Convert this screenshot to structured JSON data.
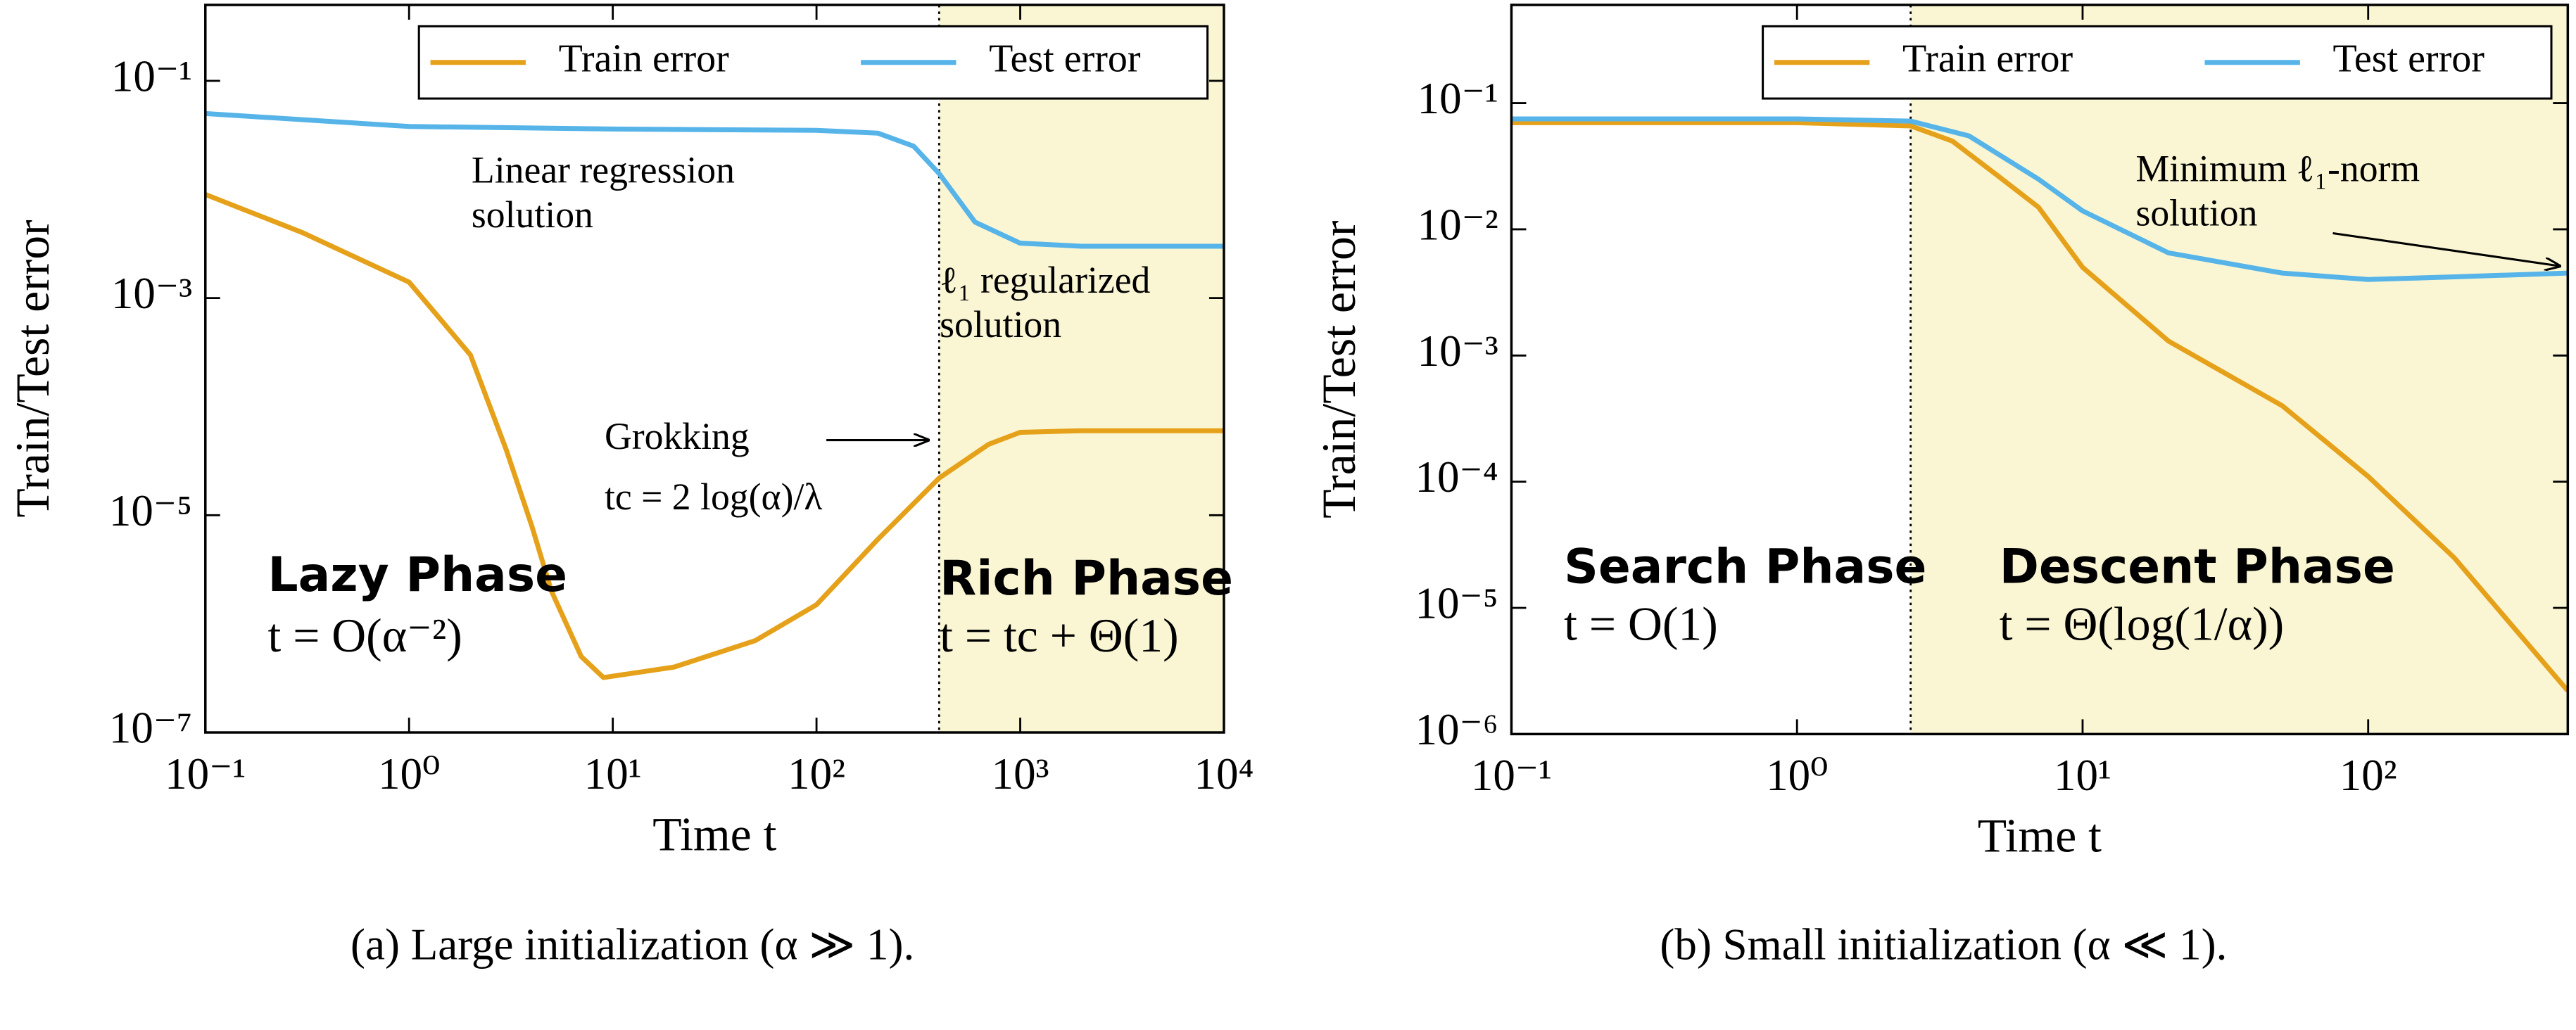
{
  "chart_data": [
    {
      "type": "line",
      "caption": "(a) Large initialization (α ≫ 1).",
      "xlabel": "Time t",
      "ylabel": "Train/Test error",
      "xlog": true,
      "ylog": true,
      "xlim": [
        0.1,
        10000
      ],
      "ylim": [
        1e-07,
        0.5
      ],
      "xticks": [
        {
          "value": 0.1,
          "label": "10⁻¹"
        },
        {
          "value": 1,
          "label": "10⁰"
        },
        {
          "value": 10,
          "label": "10¹"
        },
        {
          "value": 100,
          "label": "10²"
        },
        {
          "value": 1000,
          "label": "10³"
        },
        {
          "value": 10000,
          "label": "10⁴"
        }
      ],
      "yticks": [
        {
          "value": 1e-07,
          "label": "10⁻⁷"
        },
        {
          "value": 1e-05,
          "label": "10⁻⁵"
        },
        {
          "value": 0.001,
          "label": "10⁻³"
        },
        {
          "value": 0.1,
          "label": "10⁻¹"
        }
      ],
      "legend": "upper right",
      "phase_boundary": {
        "x": 400,
        "shade_color": "#faf6d4"
      },
      "series": [
        {
          "name": "Train error",
          "color": "#e6a11a",
          "x": [
            0.1,
            0.3,
            1,
            2,
            3,
            4,
            5,
            7,
            9,
            20,
            50,
            100,
            200,
            400,
            700,
            1000,
            2000,
            10000
          ],
          "values": [
            0.009,
            0.004,
            0.0014,
            0.0003,
            4e-05,
            8e-06,
            2e-06,
            5e-07,
            3.2e-07,
            4e-07,
            7e-07,
            1.5e-06,
            6e-06,
            2.2e-05,
            4.5e-05,
            5.8e-05,
            6e-05,
            6e-05
          ]
        },
        {
          "name": "Test error",
          "color": "#56b4e9",
          "x": [
            0.1,
            1,
            10,
            100,
            200,
            300,
            400,
            600,
            1000,
            2000,
            10000
          ],
          "values": [
            0.05,
            0.038,
            0.036,
            0.035,
            0.033,
            0.025,
            0.014,
            0.005,
            0.0032,
            0.003,
            0.003
          ]
        }
      ],
      "annotations": [
        "Linear regression",
        "solution",
        "ℓ₁ regularized",
        "solution",
        "Grokking",
        "tc = 2 log(α)/λ",
        "Lazy Phase",
        "t = O(α⁻²)",
        "Rich Phase",
        "t = tc + Θ(1)"
      ]
    },
    {
      "type": "line",
      "caption": "(b) Small initialization (α ≪ 1).",
      "xlabel": "Time t",
      "ylabel": "Train/Test error",
      "xlog": true,
      "ylog": true,
      "xlim": [
        0.1,
        500
      ],
      "ylim": [
        1e-06,
        0.6
      ],
      "xticks": [
        {
          "value": 0.1,
          "label": "10⁻¹"
        },
        {
          "value": 1,
          "label": "10⁰"
        },
        {
          "value": 10,
          "label": "10¹"
        },
        {
          "value": 100,
          "label": "10²"
        }
      ],
      "yticks": [
        {
          "value": 1e-06,
          "label": "10⁻⁶"
        },
        {
          "value": 1e-05,
          "label": "10⁻⁵"
        },
        {
          "value": 0.0001,
          "label": "10⁻⁴"
        },
        {
          "value": 0.001,
          "label": "10⁻³"
        },
        {
          "value": 0.01,
          "label": "10⁻²"
        },
        {
          "value": 0.1,
          "label": "10⁻¹"
        }
      ],
      "legend": "upper right",
      "phase_boundary": {
        "x": 2.5,
        "shade_color": "#faf6d4"
      },
      "series": [
        {
          "name": "Train error",
          "color": "#e6a11a",
          "x": [
            0.1,
            1,
            2.5,
            3.5,
            5,
            7,
            10,
            20,
            50,
            100,
            200,
            500
          ],
          "values": [
            0.07,
            0.07,
            0.066,
            0.05,
            0.027,
            0.015,
            0.005,
            0.0013,
            0.0004,
            0.00011,
            2.5e-05,
            2.2e-06
          ]
        },
        {
          "name": "Test error",
          "color": "#56b4e9",
          "x": [
            0.1,
            1,
            2.5,
            4,
            7,
            10,
            20,
            50,
            100,
            200,
            500
          ],
          "values": [
            0.075,
            0.075,
            0.072,
            0.055,
            0.025,
            0.014,
            0.0065,
            0.0045,
            0.004,
            0.0042,
            0.0045
          ]
        }
      ],
      "annotations": [
        "Minimum ℓ₁-norm",
        "solution",
        "Search Phase",
        "t = O(1)",
        "Descent Phase",
        "t = Θ(log(1/α))"
      ]
    }
  ]
}
